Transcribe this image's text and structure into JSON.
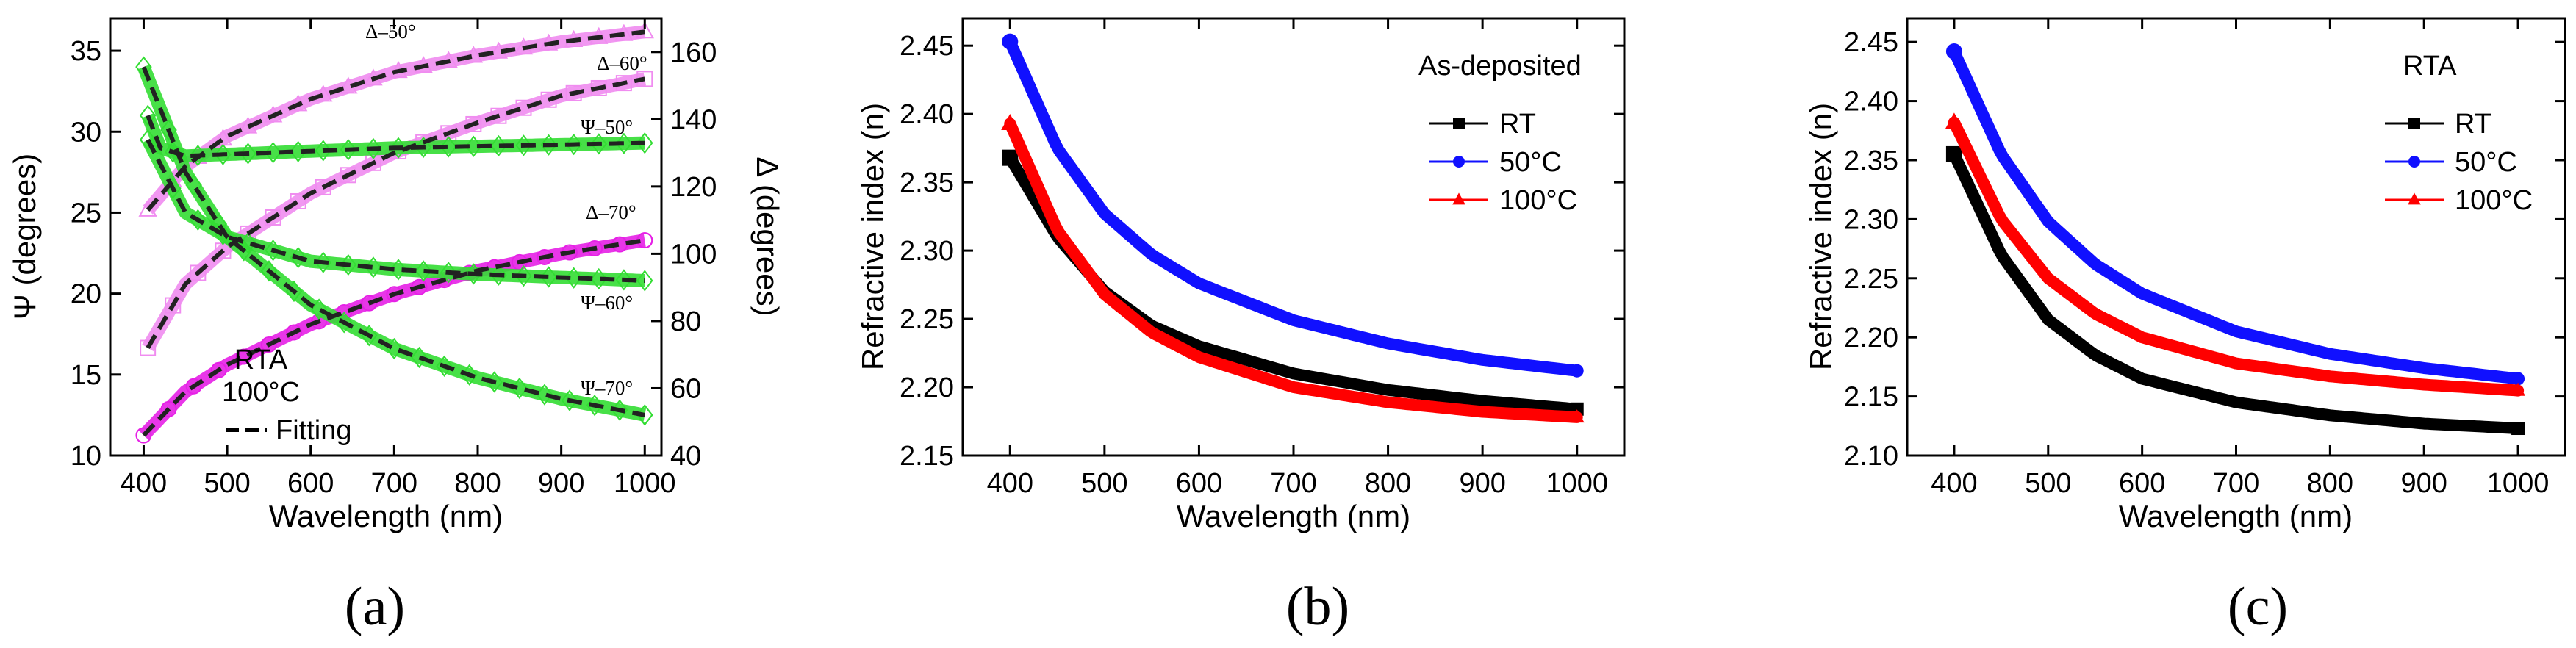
{
  "figure_labels": [
    "(a)",
    "(b)",
    "(c)"
  ],
  "chart_data": [
    {
      "type": "line",
      "panel": "(a)",
      "xlabel": "Wavelength (nm)",
      "ylabel": "Ψ (degrees)",
      "ylabel_right": "Δ (degrees)",
      "xlim": [
        360,
        1020
      ],
      "ylim": [
        10,
        37
      ],
      "ylim_right": [
        40,
        170
      ],
      "xticks": [
        400,
        500,
        600,
        700,
        800,
        900,
        1000
      ],
      "yticks": [
        10,
        15,
        20,
        25,
        30,
        35
      ],
      "yticks_right": [
        40,
        60,
        80,
        100,
        120,
        140,
        160
      ],
      "text_box": {
        "line1": "RTA",
        "line2": "100°C"
      },
      "fit_legend": "Fitting",
      "series": [
        {
          "name": "Δ–50°",
          "axis": "right",
          "color": "#f08cf0",
          "marker": "triangle-open",
          "x": [
            405,
            450,
            500,
            600,
            700,
            800,
            900,
            1000
          ],
          "values": [
            113,
            126,
            135,
            146,
            154,
            159,
            163,
            166
          ]
        },
        {
          "name": "Δ–60°",
          "axis": "right",
          "color": "#f08cf0",
          "marker": "square-open",
          "x": [
            405,
            450,
            500,
            600,
            700,
            800,
            900,
            1000
          ],
          "values": [
            72,
            91,
            102,
            118,
            130,
            139,
            147,
            152
          ]
        },
        {
          "name": "Δ–70°",
          "axis": "right",
          "color": "#e620e6",
          "marker": "circle-open",
          "x": [
            400,
            450,
            500,
            600,
            700,
            800,
            900,
            1000
          ],
          "values": [
            46,
            59,
            67,
            79,
            88,
            95,
            100,
            104
          ]
        },
        {
          "name": "Ψ–50°",
          "axis": "left",
          "color": "#33dd33",
          "marker": "diamond-open",
          "x": [
            405,
            420,
            450,
            500,
            600,
            700,
            800,
            900,
            1000
          ],
          "values": [
            31,
            29,
            28.5,
            28.6,
            28.8,
            29,
            29.1,
            29.2,
            29.3
          ]
        },
        {
          "name": "Ψ–60°",
          "axis": "left",
          "color": "#33dd33",
          "marker": "diamond-open",
          "x": [
            405,
            450,
            500,
            600,
            700,
            800,
            900,
            1000
          ],
          "values": [
            29.5,
            25,
            23.5,
            22,
            21.5,
            21.2,
            21,
            20.8
          ]
        },
        {
          "name": "Ψ–70°",
          "axis": "left",
          "color": "#33dd33",
          "marker": "diamond-open",
          "x": [
            400,
            450,
            500,
            600,
            700,
            800,
            900,
            1000
          ],
          "values": [
            34,
            27.5,
            23.5,
            19.3,
            16.6,
            14.8,
            13.5,
            12.5
          ]
        }
      ]
    },
    {
      "type": "line",
      "panel": "(b)",
      "xlabel": "Wavelength (nm)",
      "ylabel": "Refractive index (n)",
      "xlim": [
        350,
        1050
      ],
      "ylim": [
        2.15,
        2.47
      ],
      "xticks": [
        400,
        500,
        600,
        700,
        800,
        900,
        1000
      ],
      "yticks": [
        2.15,
        2.2,
        2.25,
        2.3,
        2.35,
        2.4,
        2.45
      ],
      "legend_title": "As-deposited",
      "x": [
        400,
        450,
        500,
        550,
        600,
        700,
        800,
        900,
        1000
      ],
      "series": [
        {
          "name": "RT",
          "color": "#000000",
          "marker": "square",
          "values": [
            2.368,
            2.31,
            2.27,
            2.245,
            2.23,
            2.21,
            2.198,
            2.19,
            2.184
          ]
        },
        {
          "name": "50°C",
          "color": "#1010ff",
          "marker": "circle",
          "values": [
            2.453,
            2.375,
            2.327,
            2.297,
            2.276,
            2.249,
            2.232,
            2.22,
            2.212
          ]
        },
        {
          "name": "100°C",
          "color": "#ff0000",
          "marker": "triangle",
          "values": [
            2.393,
            2.315,
            2.268,
            2.24,
            2.222,
            2.2,
            2.189,
            2.182,
            2.178
          ]
        }
      ]
    },
    {
      "type": "line",
      "panel": "(c)",
      "xlabel": "Wavelength (nm)",
      "ylabel": "Refractive index (n)",
      "xlim": [
        350,
        1050
      ],
      "ylim": [
        2.1,
        2.47
      ],
      "xticks": [
        400,
        500,
        600,
        700,
        800,
        900,
        1000
      ],
      "yticks": [
        2.1,
        2.15,
        2.2,
        2.25,
        2.3,
        2.35,
        2.4,
        2.45
      ],
      "legend_title": "RTA",
      "x": [
        400,
        450,
        500,
        550,
        600,
        700,
        800,
        900,
        1000
      ],
      "series": [
        {
          "name": "RT",
          "color": "#000000",
          "marker": "square",
          "values": [
            2.355,
            2.27,
            2.215,
            2.185,
            2.165,
            2.145,
            2.134,
            2.127,
            2.123
          ]
        },
        {
          "name": "50°C",
          "color": "#1010ff",
          "marker": "circle",
          "values": [
            2.442,
            2.355,
            2.298,
            2.262,
            2.237,
            2.205,
            2.186,
            2.174,
            2.165
          ]
        },
        {
          "name": "100°C",
          "color": "#ff0000",
          "marker": "triangle",
          "values": [
            2.382,
            2.3,
            2.25,
            2.22,
            2.2,
            2.178,
            2.167,
            2.16,
            2.155
          ]
        }
      ]
    }
  ]
}
